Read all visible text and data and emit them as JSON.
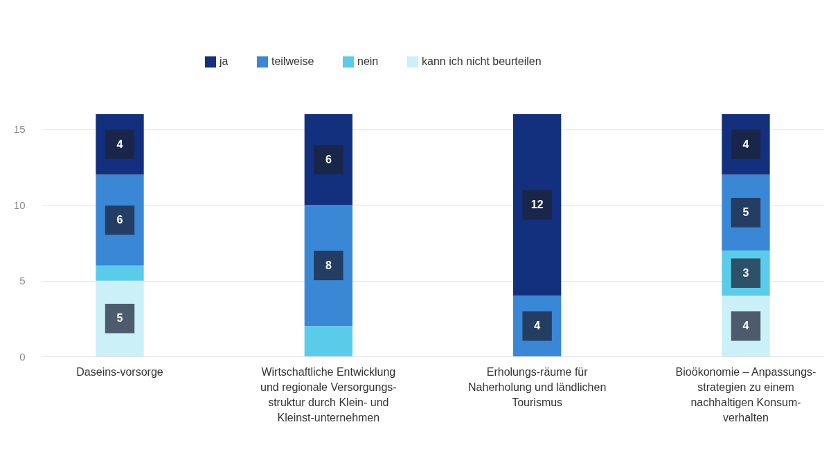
{
  "chart_data": {
    "type": "bar",
    "stacked": true,
    "categories": [
      "Daseins-vorsorge",
      "Wirtschaftliche Entwicklung und regionale Versorgungs-struktur durch Klein- und Kleinst-unternehmen",
      "Erholungs-räume für Naherholung und ländlichen Tourismus",
      "Bioökonomie – Anpassungs-strategien zu einem nachhaltigen Konsum-verhalten"
    ],
    "series": [
      {
        "name": "kann ich nicht beurteilen",
        "color": "#ccf0f8",
        "values": [
          5,
          null,
          null,
          4
        ],
        "value_labels": [
          "5",
          null,
          null,
          "4"
        ]
      },
      {
        "name": "nein",
        "color": "#5bcbea",
        "values": [
          1,
          2,
          null,
          3
        ],
        "value_labels": [
          null,
          null,
          null,
          "3"
        ]
      },
      {
        "name": "teilweise",
        "color": "#3a87d6",
        "values": [
          6,
          8,
          4,
          5
        ],
        "value_labels": [
          "6",
          "8",
          "4",
          "5"
        ]
      },
      {
        "name": "ja",
        "color": "#13307f",
        "values": [
          4,
          6,
          12,
          4
        ],
        "value_labels": [
          "4",
          "6",
          "12",
          "4"
        ]
      }
    ],
    "ylim": [
      0,
      16
    ],
    "yticks": [
      0,
      5,
      10,
      15
    ],
    "grid": "y",
    "legend": "top"
  }
}
